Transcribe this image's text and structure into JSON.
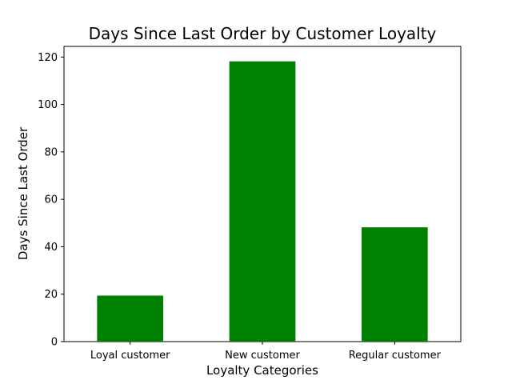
{
  "chart_data": {
    "type": "bar",
    "title": "Days Since Last Order by Customer Loyalty",
    "xlabel": "Loyalty Categories",
    "ylabel": "Days Since Last Order",
    "categories": [
      "Loyal customer",
      "New customer",
      "Regular customer"
    ],
    "values": [
      19.4,
      118.2,
      48.2
    ],
    "ylim": [
      0,
      124.5
    ],
    "yticks": [
      0,
      20,
      40,
      60,
      80,
      100,
      120
    ],
    "grid": false,
    "bar_color": "#008000"
  }
}
